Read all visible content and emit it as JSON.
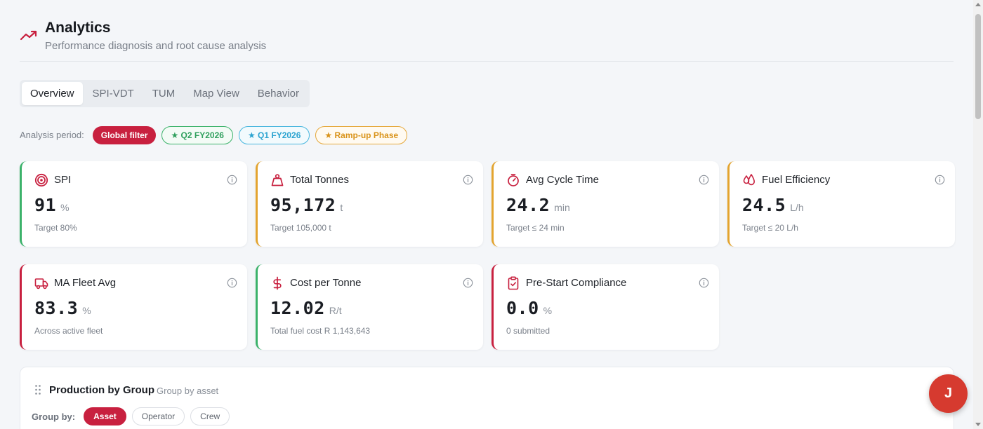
{
  "header": {
    "title": "Analytics",
    "subtitle": "Performance diagnosis and root cause analysis",
    "icon": "trending-up-icon",
    "accent": "#c8203f"
  },
  "tabs": [
    {
      "label": "Overview",
      "active": true
    },
    {
      "label": "SPI-VDT",
      "active": false
    },
    {
      "label": "TUM",
      "active": false
    },
    {
      "label": "Map View",
      "active": false
    },
    {
      "label": "Behavior",
      "active": false
    }
  ],
  "filters": {
    "label": "Analysis period:",
    "global": "Global filter",
    "q2": "★ Q2 FY2026",
    "q1": "★ Q1 FY2026",
    "ramp": "★ Ramp-up Phase"
  },
  "cards": [
    {
      "title": "SPI",
      "value": "91",
      "unit": "%",
      "sub": "Target 80%",
      "icon": "target-icon",
      "status": "green"
    },
    {
      "title": "Total Tonnes",
      "value": "95,172",
      "unit": "t",
      "sub": "Target 105,000 t",
      "icon": "weight-icon",
      "status": "amber"
    },
    {
      "title": "Avg Cycle Time",
      "value": "24.2",
      "unit": "min",
      "sub": "Target ≤ 24 min",
      "icon": "timer-icon",
      "status": "amber"
    },
    {
      "title": "Fuel Efficiency",
      "value": "24.5",
      "unit": "L/h",
      "sub": "Target ≤ 20 L/h",
      "icon": "droplets-icon",
      "status": "amber"
    },
    {
      "title": "MA Fleet Avg",
      "value": "83.3",
      "unit": "%",
      "sub": "Across active fleet",
      "icon": "truck-icon",
      "status": "red"
    },
    {
      "title": "Cost per Tonne",
      "value": "12.02",
      "unit": "R/t",
      "sub": "Total fuel cost R 1,143,643",
      "icon": "dollar-icon",
      "status": "green"
    },
    {
      "title": "Pre-Start Compliance",
      "value": "0.0",
      "unit": "%",
      "sub": "0 submitted",
      "icon": "clipboard-check-icon",
      "status": "red"
    }
  ],
  "production": {
    "title": "Production by Group",
    "subtitle": "Group by asset",
    "groupby_label": "Group by:",
    "options": [
      "Asset",
      "Operator",
      "Crew"
    ],
    "selected": "Asset"
  },
  "avatar": {
    "initial": "J"
  },
  "colors": {
    "green": "#3bb26a",
    "amber": "#e3a42f",
    "red": "#c8203f"
  }
}
